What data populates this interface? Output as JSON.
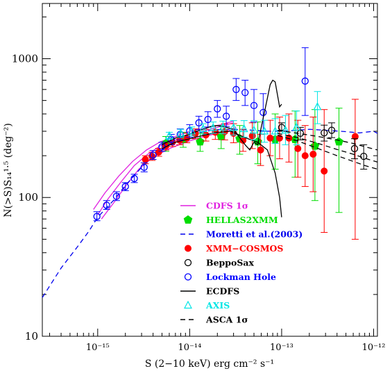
{
  "chart_data": {
    "type": "scatter",
    "title": "",
    "xlabel": "S (2−10 keV) erg cm⁻² s⁻¹",
    "ylabel": "N(>S)S₁₄¹·⁵ (deg⁻²)",
    "x_scale": "log",
    "y_scale": "log",
    "xlim": [
      2.5e-16,
      1.1e-12
    ],
    "ylim": [
      10,
      2500
    ],
    "x_ticks": [
      {
        "value": 1e-15,
        "label": "10⁻¹⁵"
      },
      {
        "value": 1e-14,
        "label": "10⁻¹⁴"
      },
      {
        "value": 1e-13,
        "label": "10⁻¹³"
      },
      {
        "value": 1e-12,
        "label": "10⁻¹²"
      }
    ],
    "y_ticks": [
      {
        "value": 10,
        "label": "10"
      },
      {
        "value": 100,
        "label": "100"
      },
      {
        "value": 1000,
        "label": "1000"
      }
    ],
    "legend_position": "bottom-center",
    "series": [
      {
        "name": "CDFS 1σ",
        "kind": "lines",
        "color": "#e020e0",
        "dash": "none",
        "lines": [
          {
            "x": [
              1e-15,
              1.3e-15,
              1.8e-15,
              2.5e-15,
              3.5e-15,
              5e-15,
              7e-15,
              1e-14,
              1.4e-14,
              2e-14,
              3e-14
            ],
            "y": [
              75,
              98,
              130,
              170,
              205,
              240,
              260,
              285,
              300,
              320,
              345
            ]
          },
          {
            "x": [
              1.1e-15,
              1.5e-15,
              2e-15,
              2.8e-15,
              4e-15,
              6e-15,
              9e-15,
              1.3e-14,
              1.8e-14,
              2.6e-14,
              3.2e-14
            ],
            "y": [
              70,
              92,
              120,
              160,
              195,
              225,
              250,
              270,
              285,
              300,
              320
            ]
          },
          {
            "x": [
              9e-16,
              1.2e-15,
              1.7e-15,
              2.4e-15,
              3.4e-15,
              4.8e-15,
              7e-15,
              1e-14,
              1.5e-14,
              2.2e-14,
              3e-14
            ],
            "y": [
              82,
              108,
              143,
              182,
              220,
              252,
              275,
              300,
              318,
              335,
              355
            ]
          }
        ]
      },
      {
        "name": "HELLAS2XMM",
        "kind": "points",
        "color": "#00dd00",
        "marker": "pentagon",
        "points": [
          {
            "x": 5.5e-15,
            "y": 245,
            "lo": 215,
            "hi": 275
          },
          {
            "x": 8.5e-15,
            "y": 262,
            "lo": 230,
            "hi": 295
          },
          {
            "x": 1.3e-14,
            "y": 252,
            "lo": 215,
            "hi": 290
          },
          {
            "x": 2.2e-14,
            "y": 275,
            "lo": 225,
            "hi": 330
          },
          {
            "x": 3.5e-14,
            "y": 265,
            "lo": 205,
            "hi": 330
          },
          {
            "x": 5.5e-14,
            "y": 252,
            "lo": 175,
            "hi": 350
          },
          {
            "x": 8.5e-14,
            "y": 262,
            "lo": 160,
            "hi": 400
          },
          {
            "x": 1.4e-13,
            "y": 262,
            "lo": 140,
            "hi": 420
          },
          {
            "x": 2.3e-13,
            "y": 235,
            "lo": 95,
            "hi": 430
          },
          {
            "x": 4.2e-13,
            "y": 252,
            "lo": 78,
            "hi": 440
          }
        ]
      },
      {
        "name": "Moretti et al.(2003)",
        "kind": "lines",
        "color": "#0000ee",
        "dash": "dashed",
        "lines": [
          {
            "x": [
              2.5e-16,
              4e-16,
              6e-16,
              8e-16,
              1e-15,
              1.5e-15,
              2e-15,
              3e-15,
              4e-15,
              5e-15,
              7e-15,
              1e-14,
              1.5e-14,
              2e-14,
              3e-14,
              5e-14,
              7e-14,
              1e-13,
              1.5e-13,
              2e-13,
              3e-13,
              5e-13,
              7e-13,
              1e-12,
              1.1e-12
            ],
            "y": [
              19,
              31,
              44,
              57,
              72,
              96,
              122,
              165,
              198,
              222,
              255,
              283,
              300,
              308,
              310,
              305,
              300,
              300,
              305,
              310,
              305,
              298,
              292,
              300,
              290
            ]
          }
        ]
      },
      {
        "name": "XMM−COSMOS",
        "kind": "points",
        "color": "#ff0000",
        "marker": "filled-circle",
        "points": [
          {
            "x": 3.3e-15,
            "y": 188,
            "lo": 175,
            "hi": 200
          },
          {
            "x": 3.9e-15,
            "y": 198,
            "lo": 185,
            "hi": 212
          },
          {
            "x": 4.6e-15,
            "y": 212,
            "lo": 198,
            "hi": 226
          },
          {
            "x": 5.5e-15,
            "y": 235,
            "lo": 220,
            "hi": 250
          },
          {
            "x": 6.5e-15,
            "y": 250,
            "lo": 233,
            "hi": 267
          },
          {
            "x": 7.8e-15,
            "y": 258,
            "lo": 240,
            "hi": 276
          },
          {
            "x": 9.3e-15,
            "y": 268,
            "lo": 248,
            "hi": 290
          },
          {
            "x": 1.15e-14,
            "y": 288,
            "lo": 265,
            "hi": 312
          },
          {
            "x": 1.5e-14,
            "y": 282,
            "lo": 255,
            "hi": 310
          },
          {
            "x": 1.9e-14,
            "y": 295,
            "lo": 262,
            "hi": 330
          },
          {
            "x": 2.4e-14,
            "y": 298,
            "lo": 260,
            "hi": 340
          },
          {
            "x": 3e-14,
            "y": 290,
            "lo": 248,
            "hi": 340
          },
          {
            "x": 3.8e-14,
            "y": 258,
            "lo": 215,
            "hi": 310
          },
          {
            "x": 4.8e-14,
            "y": 278,
            "lo": 225,
            "hi": 345
          },
          {
            "x": 5.9e-14,
            "y": 220,
            "lo": 170,
            "hi": 285
          },
          {
            "x": 7.5e-14,
            "y": 268,
            "lo": 200,
            "hi": 360
          },
          {
            "x": 9.5e-14,
            "y": 268,
            "lo": 190,
            "hi": 380
          },
          {
            "x": 1.2e-13,
            "y": 268,
            "lo": 180,
            "hi": 400
          },
          {
            "x": 1.5e-13,
            "y": 225,
            "lo": 140,
            "hi": 360
          },
          {
            "x": 1.8e-13,
            "y": 200,
            "lo": 120,
            "hi": 330
          },
          {
            "x": 2.2e-13,
            "y": 205,
            "lo": 110,
            "hi": 380
          },
          {
            "x": 2.9e-13,
            "y": 155,
            "lo": 56,
            "hi": 430
          },
          {
            "x": 6.3e-13,
            "y": 275,
            "lo": 50,
            "hi": 510
          }
        ]
      },
      {
        "name": "BeppoSax",
        "kind": "points",
        "color": "#000000",
        "marker": "open-circle",
        "points": [
          {
            "x": 1e-13,
            "y": 320,
            "lo": 300,
            "hi": 345
          },
          {
            "x": 1.6e-13,
            "y": 290,
            "lo": 260,
            "hi": 320
          },
          {
            "x": 2.9e-13,
            "y": 292,
            "lo": 255,
            "hi": 332
          },
          {
            "x": 3.5e-13,
            "y": 305,
            "lo": 270,
            "hi": 345
          },
          {
            "x": 6.2e-13,
            "y": 225,
            "lo": 190,
            "hi": 265
          },
          {
            "x": 7.8e-13,
            "y": 198,
            "lo": 160,
            "hi": 240
          }
        ]
      },
      {
        "name": "Lockman Hole",
        "kind": "points",
        "color": "#0000ff",
        "marker": "open-circle",
        "points": [
          {
            "x": 9.8e-16,
            "y": 73,
            "lo": 68,
            "hi": 79
          },
          {
            "x": 1.25e-15,
            "y": 88,
            "lo": 82,
            "hi": 95
          },
          {
            "x": 1.6e-15,
            "y": 102,
            "lo": 95,
            "hi": 110
          },
          {
            "x": 2e-15,
            "y": 120,
            "lo": 112,
            "hi": 128
          },
          {
            "x": 2.5e-15,
            "y": 137,
            "lo": 128,
            "hi": 147
          },
          {
            "x": 3.2e-15,
            "y": 165,
            "lo": 153,
            "hi": 178
          },
          {
            "x": 4e-15,
            "y": 202,
            "lo": 188,
            "hi": 218
          },
          {
            "x": 5e-15,
            "y": 232,
            "lo": 215,
            "hi": 250
          },
          {
            "x": 6.3e-15,
            "y": 262,
            "lo": 240,
            "hi": 285
          },
          {
            "x": 7.9e-15,
            "y": 285,
            "lo": 260,
            "hi": 312
          },
          {
            "x": 1e-14,
            "y": 302,
            "lo": 272,
            "hi": 335
          },
          {
            "x": 1.26e-14,
            "y": 345,
            "lo": 308,
            "hi": 385
          },
          {
            "x": 1.58e-14,
            "y": 365,
            "lo": 322,
            "hi": 415
          },
          {
            "x": 2e-14,
            "y": 435,
            "lo": 378,
            "hi": 500
          },
          {
            "x": 2.5e-14,
            "y": 385,
            "lo": 325,
            "hi": 455
          },
          {
            "x": 3.2e-14,
            "y": 600,
            "lo": 500,
            "hi": 720
          },
          {
            "x": 4e-14,
            "y": 570,
            "lo": 460,
            "hi": 700
          },
          {
            "x": 5e-14,
            "y": 460,
            "lo": 350,
            "hi": 600
          },
          {
            "x": 6.3e-14,
            "y": 410,
            "lo": 300,
            "hi": 560
          },
          {
            "x": 1.8e-13,
            "y": 690,
            "lo": 390,
            "hi": 1200
          }
        ]
      },
      {
        "name": "ECDFS",
        "kind": "lines",
        "color": "#000000",
        "dash": "none",
        "lines": [
          {
            "x": [
              5e-15,
              6e-15,
              7e-15,
              8e-15,
              9e-15,
              1e-14,
              1.2e-14,
              1.4e-14,
              1.7e-14,
              2e-14,
              2.5e-14,
              3e-14,
              3.5e-14,
              4e-14,
              4.5e-14,
              5e-14,
              5.5e-14,
              6e-14,
              6.5e-14,
              7e-14,
              7.5e-14,
              8e-14,
              8.5e-14,
              9e-14,
              9.5e-14,
              1e-13
            ],
            "y": [
              240,
              255,
              268,
              275,
              280,
              285,
              300,
              310,
              325,
              330,
              320,
              310,
              270,
              240,
              220,
              250,
              240,
              320,
              410,
              520,
              650,
              700,
              680,
              550,
              450,
              470
            ]
          },
          {
            "x": [
              5e-15,
              7e-15,
              1e-14,
              1.4e-14,
              2e-14,
              2.8e-14,
              4e-14,
              5.5e-14,
              7e-14,
              8.5e-14,
              9.5e-14,
              1e-13
            ],
            "y": [
              225,
              250,
              265,
              280,
              295,
              300,
              270,
              250,
              220,
              150,
              100,
              72
            ]
          }
        ]
      },
      {
        "name": "AXIS",
        "kind": "points",
        "color": "#00e5e5",
        "marker": "open-triangle",
        "points": [
          {
            "x": 6e-15,
            "y": 278,
            "lo": 262,
            "hi": 295
          },
          {
            "x": 8e-15,
            "y": 290,
            "lo": 270,
            "hi": 310
          },
          {
            "x": 1.05e-14,
            "y": 300,
            "lo": 278,
            "hi": 322
          },
          {
            "x": 1.4e-14,
            "y": 312,
            "lo": 286,
            "hi": 340
          },
          {
            "x": 1.8e-14,
            "y": 318,
            "lo": 290,
            "hi": 350
          },
          {
            "x": 2.3e-14,
            "y": 320,
            "lo": 288,
            "hi": 355
          },
          {
            "x": 3e-14,
            "y": 318,
            "lo": 282,
            "hi": 358
          },
          {
            "x": 3.9e-14,
            "y": 312,
            "lo": 272,
            "hi": 358
          },
          {
            "x": 5e-14,
            "y": 305,
            "lo": 260,
            "hi": 358
          },
          {
            "x": 6.5e-14,
            "y": 300,
            "lo": 250,
            "hi": 360
          },
          {
            "x": 8.5e-14,
            "y": 300,
            "lo": 245,
            "hi": 370
          },
          {
            "x": 1.1e-13,
            "y": 305,
            "lo": 240,
            "hi": 390
          },
          {
            "x": 1.45e-13,
            "y": 320,
            "lo": 240,
            "hi": 420
          },
          {
            "x": 2.45e-13,
            "y": 450,
            "lo": 340,
            "hi": 580
          }
        ]
      },
      {
        "name": "ASCA 1σ",
        "kind": "lines",
        "color": "#000000",
        "dash": "dashed",
        "lines": [
          {
            "x": [
              9e-14,
              1.5e-13,
              2.5e-13,
              4e-13,
              6e-13,
              8e-13,
              1.1e-12
            ],
            "y": [
              305,
              290,
              275,
              260,
              245,
              232,
              220
            ]
          },
          {
            "x": [
              9e-14,
              1.5e-13,
              2.5e-13,
              4e-13,
              6e-13,
              8e-13,
              1.1e-12
            ],
            "y": [
              290,
              270,
              245,
              222,
              205,
              192,
              180
            ]
          },
          {
            "x": [
              9e-14,
              1.5e-13,
              2.5e-13,
              4e-13,
              6e-13,
              8e-13,
              1.1e-12
            ],
            "y": [
              280,
              255,
              225,
              200,
              182,
              170,
              160
            ]
          }
        ]
      }
    ]
  }
}
